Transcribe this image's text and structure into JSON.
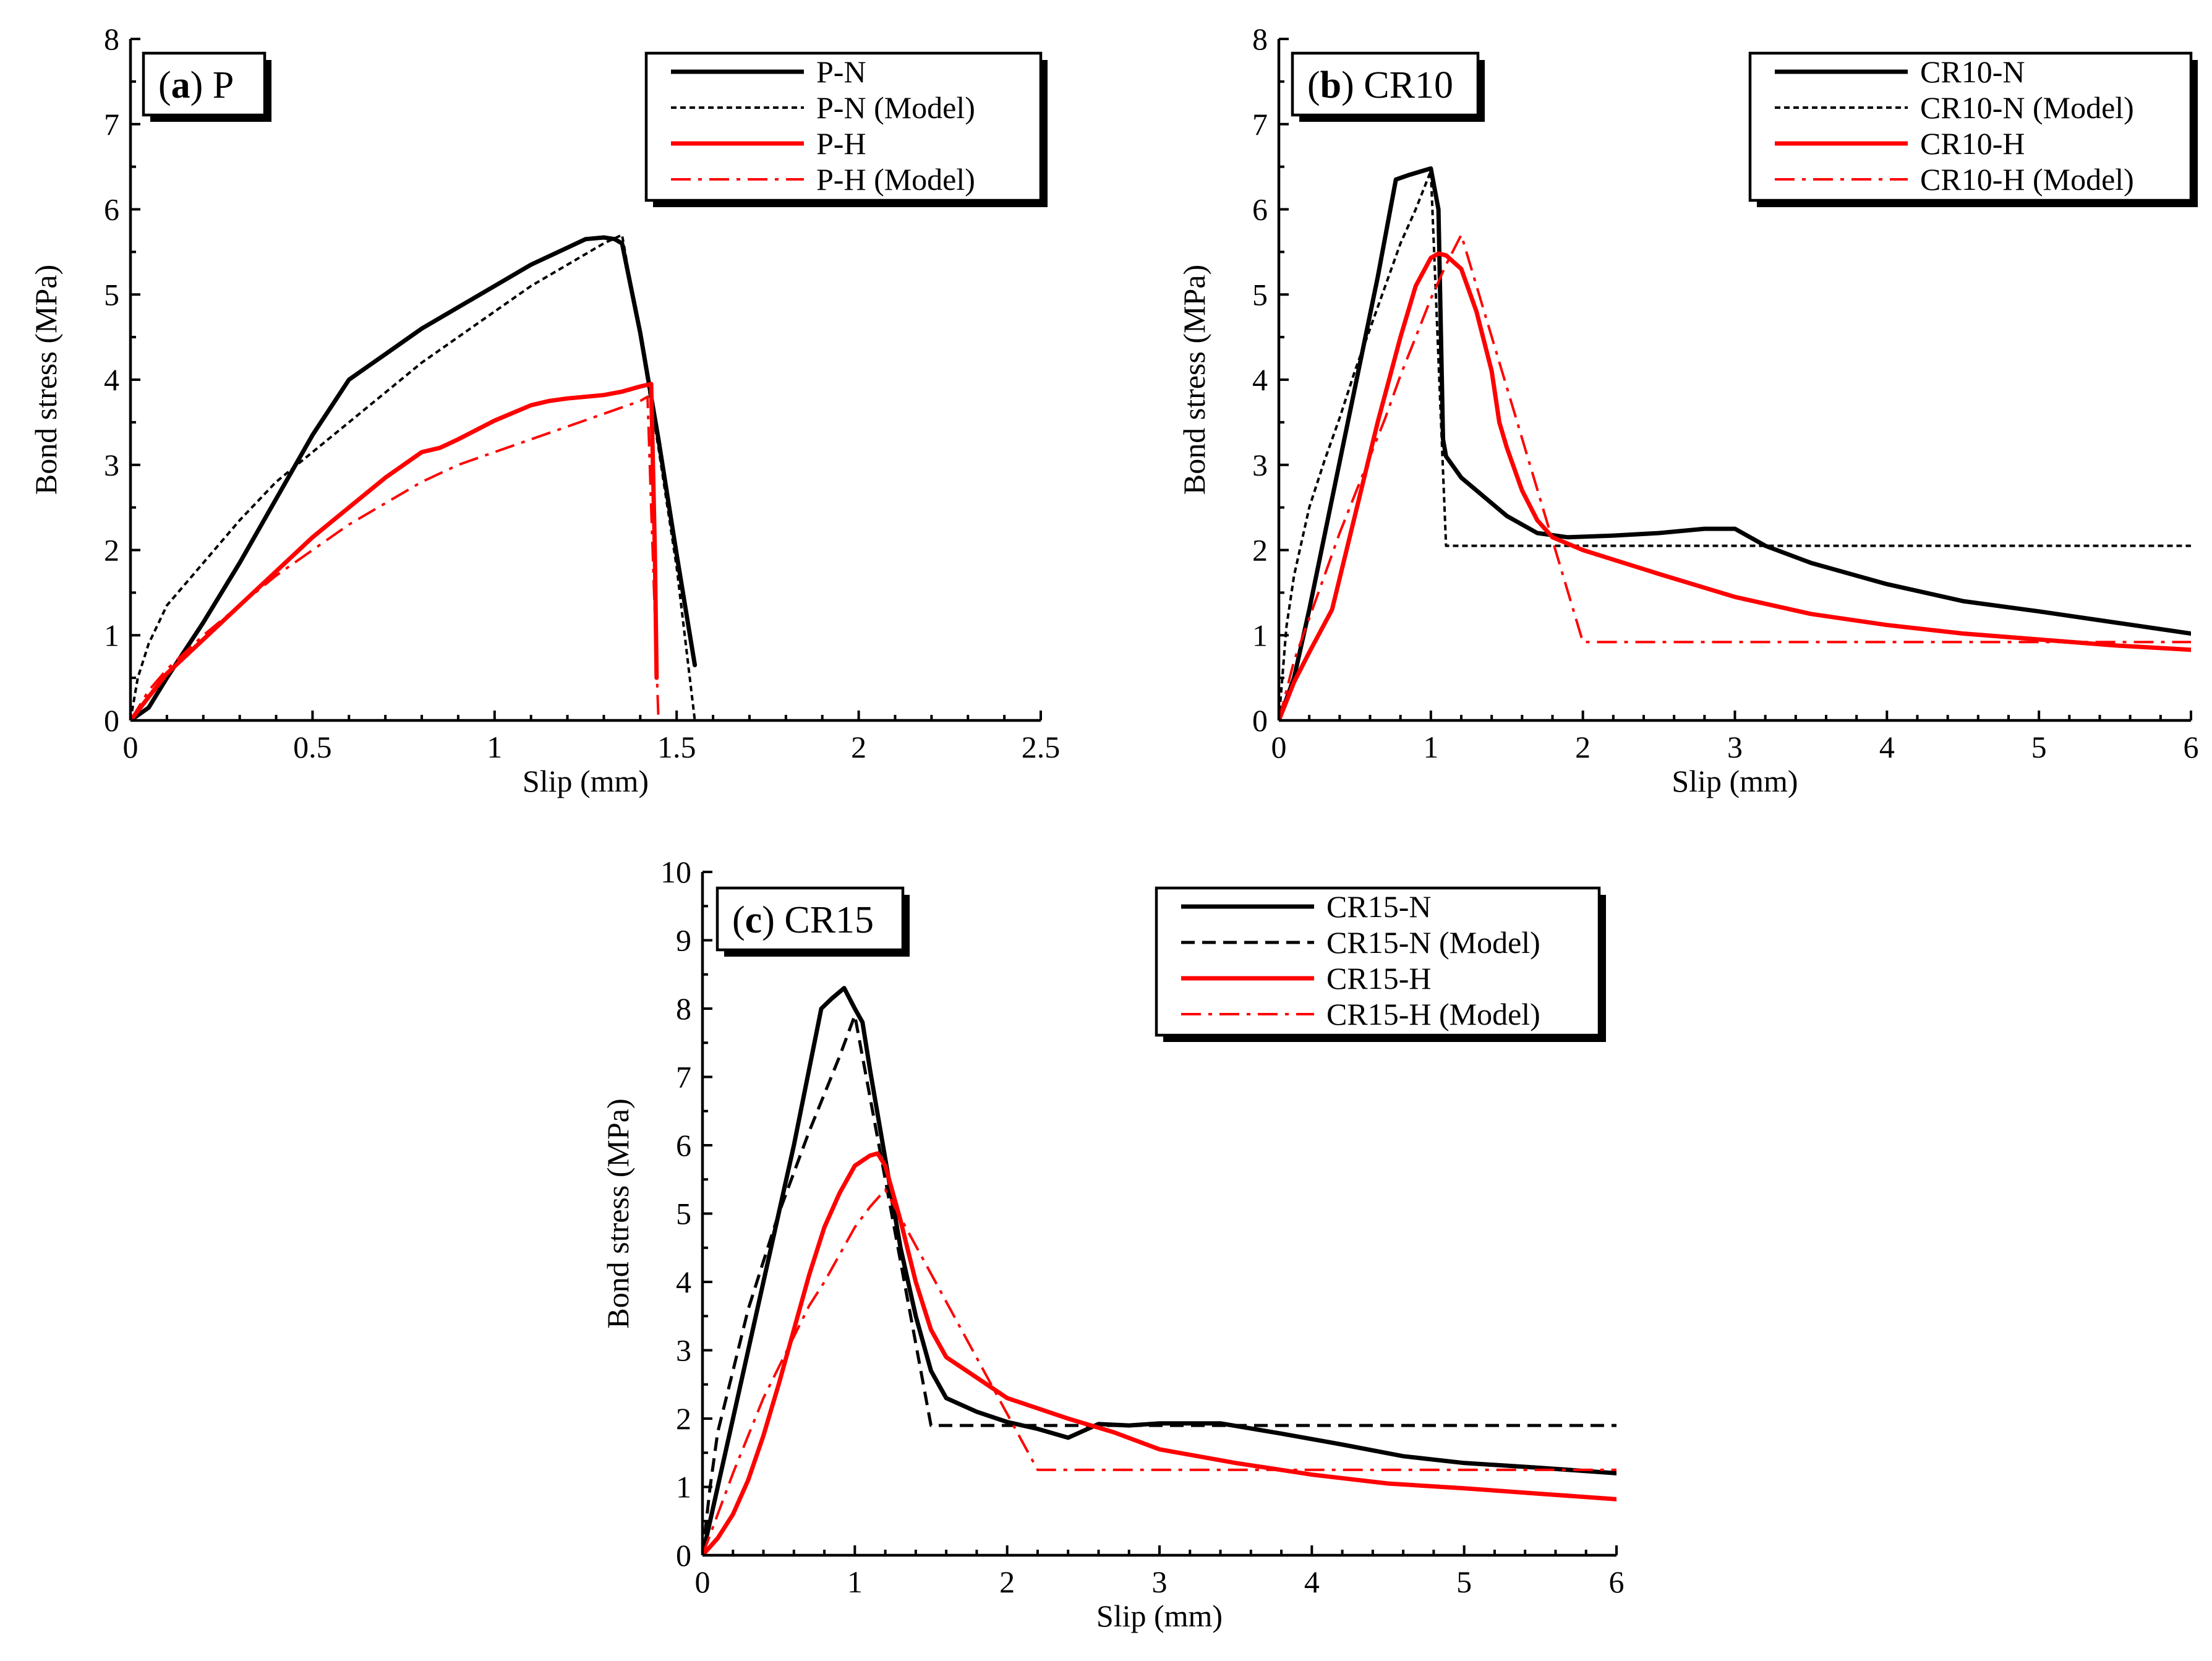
{
  "chart_data": [
    {
      "id": "a",
      "type": "line",
      "panel_letter": "a",
      "panel_name": "P",
      "xlabel": "Slip (mm)",
      "ylabel": "Bond stress (MPa)",
      "xlim": [
        0,
        2.5
      ],
      "ylim": [
        0,
        8
      ],
      "xticks": [
        0,
        0.5,
        1,
        1.5,
        2,
        2.5
      ],
      "xtick_labels": [
        "0",
        "0.5",
        "1",
        "1.5",
        "2",
        "2.5"
      ],
      "yticks": [
        0,
        1,
        2,
        3,
        4,
        5,
        6,
        7,
        8
      ],
      "ytick_labels": [
        "0",
        "1",
        "2",
        "3",
        "4",
        "5",
        "6",
        "7",
        "8"
      ],
      "legend_position": "top-right",
      "series": [
        {
          "name": "P-N",
          "color": "#000000",
          "style": "solid",
          "x": [
            0,
            0.05,
            0.1,
            0.2,
            0.3,
            0.4,
            0.5,
            0.6,
            0.65,
            0.7,
            0.8,
            0.9,
            1.0,
            1.1,
            1.2,
            1.25,
            1.3,
            1.33,
            1.35,
            1.4,
            1.45,
            1.5,
            1.55
          ],
          "y": [
            0,
            0.15,
            0.5,
            1.15,
            1.85,
            2.6,
            3.35,
            4.0,
            4.15,
            4.3,
            4.6,
            4.85,
            5.1,
            5.35,
            5.55,
            5.65,
            5.67,
            5.65,
            5.6,
            4.55,
            3.3,
            1.95,
            0.65
          ]
        },
        {
          "name": "P-N (Model)",
          "color": "#000000",
          "style": "dotted",
          "x": [
            0,
            0.02,
            0.05,
            0.1,
            0.2,
            0.3,
            0.4,
            0.5,
            0.6,
            0.7,
            0.8,
            0.9,
            1.0,
            1.1,
            1.2,
            1.3,
            1.35,
            1.4,
            1.45,
            1.5,
            1.55
          ],
          "y": [
            0,
            0.5,
            0.9,
            1.35,
            1.85,
            2.35,
            2.8,
            3.15,
            3.5,
            3.85,
            4.2,
            4.5,
            4.8,
            5.1,
            5.35,
            5.6,
            5.7,
            4.5,
            3.2,
            1.8,
            0
          ]
        },
        {
          "name": "P-H",
          "color": "#ff0000",
          "style": "solid",
          "x": [
            0,
            0.1,
            0.2,
            0.3,
            0.4,
            0.5,
            0.6,
            0.7,
            0.8,
            0.85,
            0.9,
            1.0,
            1.1,
            1.15,
            1.2,
            1.3,
            1.35,
            1.4,
            1.43,
            1.44,
            1.445
          ],
          "y": [
            0,
            0.55,
            0.95,
            1.35,
            1.75,
            2.15,
            2.5,
            2.85,
            3.15,
            3.2,
            3.3,
            3.52,
            3.7,
            3.75,
            3.78,
            3.82,
            3.86,
            3.92,
            3.95,
            2.0,
            0.5
          ]
        },
        {
          "name": "P-H (Model)",
          "color": "#ff0000",
          "style": "dashdot",
          "x": [
            0,
            0.05,
            0.1,
            0.2,
            0.3,
            0.4,
            0.5,
            0.6,
            0.7,
            0.8,
            0.9,
            1.0,
            1.1,
            1.2,
            1.3,
            1.4,
            1.42,
            1.43,
            1.45
          ],
          "y": [
            0,
            0.35,
            0.6,
            1.0,
            1.35,
            1.7,
            2.0,
            2.3,
            2.55,
            2.8,
            3.0,
            3.15,
            3.3,
            3.45,
            3.6,
            3.75,
            3.8,
            2.5,
            0
          ]
        }
      ]
    },
    {
      "id": "b",
      "type": "line",
      "panel_letter": "b",
      "panel_name": "CR10",
      "xlabel": "Slip (mm)",
      "ylabel": "Bond stress (MPa)",
      "xlim": [
        0,
        6
      ],
      "ylim": [
        0,
        8
      ],
      "xticks": [
        0,
        1,
        2,
        3,
        4,
        5,
        6
      ],
      "xtick_labels": [
        "0",
        "1",
        "2",
        "3",
        "4",
        "5",
        "6"
      ],
      "yticks": [
        0,
        1,
        2,
        3,
        4,
        5,
        6,
        7,
        8
      ],
      "ytick_labels": [
        "0",
        "1",
        "2",
        "3",
        "4",
        "5",
        "6",
        "7",
        "8"
      ],
      "legend_position": "top-right",
      "series": [
        {
          "name": "CR10-N",
          "color": "#000000",
          "style": "solid",
          "x": [
            0,
            0.1,
            0.2,
            0.35,
            0.5,
            0.65,
            0.77,
            0.85,
            1.0,
            1.05,
            1.08,
            1.1,
            1.2,
            1.3,
            1.5,
            1.7,
            1.9,
            2.2,
            2.5,
            2.8,
            3.0,
            3.2,
            3.5,
            4.0,
            4.5,
            5.0,
            5.5,
            6.0
          ],
          "y": [
            0,
            0.5,
            1.3,
            2.6,
            3.9,
            5.2,
            6.35,
            6.4,
            6.48,
            6.0,
            3.3,
            3.1,
            2.85,
            2.7,
            2.4,
            2.2,
            2.15,
            2.17,
            2.2,
            2.25,
            2.25,
            2.05,
            1.85,
            1.6,
            1.4,
            1.28,
            1.15,
            1.02
          ]
        },
        {
          "name": "CR10-N (Model)",
          "color": "#000000",
          "style": "dotted",
          "x": [
            0,
            0.05,
            0.1,
            0.2,
            0.3,
            0.4,
            0.5,
            0.6,
            0.7,
            0.8,
            0.9,
            1.0,
            1.1,
            6.0
          ],
          "y": [
            0,
            1.1,
            1.7,
            2.5,
            3.05,
            3.55,
            4.1,
            4.6,
            5.1,
            5.6,
            6.0,
            6.45,
            2.05,
            2.05
          ]
        },
        {
          "name": "CR10-H",
          "color": "#ff0000",
          "style": "solid",
          "x": [
            0,
            0.1,
            0.2,
            0.35,
            0.5,
            0.65,
            0.8,
            0.9,
            1.0,
            1.05,
            1.1,
            1.2,
            1.3,
            1.4,
            1.45,
            1.5,
            1.6,
            1.7,
            1.8,
            2.0,
            2.5,
            3.0,
            3.5,
            4.0,
            4.5,
            5.0,
            5.5,
            6.0
          ],
          "y": [
            0,
            0.45,
            0.8,
            1.3,
            2.4,
            3.5,
            4.5,
            5.1,
            5.43,
            5.48,
            5.46,
            5.3,
            4.8,
            4.1,
            3.5,
            3.2,
            2.7,
            2.35,
            2.15,
            2.0,
            1.72,
            1.45,
            1.25,
            1.12,
            1.02,
            0.95,
            0.88,
            0.83
          ]
        },
        {
          "name": "CR10-H (Model)",
          "color": "#ff0000",
          "style": "dashdot",
          "x": [
            0,
            0.1,
            0.2,
            0.3,
            0.4,
            0.5,
            0.6,
            0.7,
            0.8,
            0.9,
            1.0,
            1.1,
            1.2,
            2.0,
            6.0
          ],
          "y": [
            0,
            0.7,
            1.2,
            1.7,
            2.2,
            2.65,
            3.1,
            3.55,
            4.05,
            4.5,
            4.95,
            5.35,
            5.7,
            0.92,
            0.92
          ]
        }
      ]
    },
    {
      "id": "c",
      "type": "line",
      "panel_letter": "c",
      "panel_name": "CR15",
      "xlabel": "Slip (mm)",
      "ylabel": "Bond stress (MPa)",
      "xlim": [
        0,
        6
      ],
      "ylim": [
        0,
        10
      ],
      "xticks": [
        0,
        1,
        2,
        3,
        4,
        5,
        6
      ],
      "xtick_labels": [
        "0",
        "1",
        "2",
        "3",
        "4",
        "5",
        "6"
      ],
      "yticks": [
        0,
        1,
        2,
        3,
        4,
        5,
        6,
        7,
        8,
        9,
        10
      ],
      "ytick_labels": [
        "0",
        "1",
        "2",
        "3",
        "4",
        "5",
        "6",
        "7",
        "8",
        "9",
        "10"
      ],
      "legend_position": "top-right",
      "series": [
        {
          "name": "CR15-N",
          "color": "#000000",
          "style": "solid",
          "x": [
            0,
            0.1,
            0.2,
            0.4,
            0.6,
            0.78,
            0.85,
            0.93,
            1.0,
            1.05,
            1.1,
            1.2,
            1.3,
            1.4,
            1.5,
            1.6,
            1.8,
            2.0,
            2.2,
            2.4,
            2.6,
            2.8,
            3.0,
            3.4,
            3.8,
            4.2,
            4.6,
            5.0,
            5.5,
            6.0
          ],
          "y": [
            0,
            1.0,
            2.0,
            4.0,
            6.0,
            8.0,
            8.15,
            8.3,
            8.0,
            7.8,
            7.1,
            5.8,
            4.5,
            3.5,
            2.7,
            2.3,
            2.1,
            1.95,
            1.85,
            1.72,
            1.92,
            1.9,
            1.93,
            1.93,
            1.78,
            1.62,
            1.45,
            1.35,
            1.28,
            1.2
          ]
        },
        {
          "name": "CR15-N (Model)",
          "color": "#000000",
          "style": "dashed",
          "x": [
            0,
            0.05,
            0.1,
            0.2,
            0.3,
            0.4,
            0.5,
            0.6,
            0.7,
            0.8,
            0.9,
            1.0,
            1.5,
            6.0
          ],
          "y": [
            0,
            1.0,
            1.8,
            2.7,
            3.6,
            4.3,
            5.0,
            5.6,
            6.2,
            6.75,
            7.3,
            7.9,
            1.9,
            1.9
          ]
        },
        {
          "name": "CR15-H",
          "color": "#ff0000",
          "style": "solid",
          "x": [
            0,
            0.1,
            0.2,
            0.3,
            0.4,
            0.5,
            0.6,
            0.7,
            0.8,
            0.9,
            1.0,
            1.1,
            1.15,
            1.2,
            1.3,
            1.4,
            1.5,
            1.6,
            1.8,
            2.0,
            2.4,
            2.7,
            3.0,
            3.5,
            4.0,
            4.5,
            5.0,
            5.5,
            6.0
          ],
          "y": [
            0,
            0.25,
            0.6,
            1.1,
            1.75,
            2.5,
            3.3,
            4.1,
            4.8,
            5.3,
            5.7,
            5.85,
            5.88,
            5.7,
            4.9,
            4.0,
            3.3,
            2.9,
            2.6,
            2.3,
            2.0,
            1.8,
            1.55,
            1.35,
            1.18,
            1.05,
            0.98,
            0.9,
            0.82
          ]
        },
        {
          "name": "CR15-H (Model)",
          "color": "#ff0000",
          "style": "dashdot",
          "x": [
            0,
            0.1,
            0.2,
            0.3,
            0.4,
            0.5,
            0.6,
            0.7,
            0.8,
            0.9,
            1.0,
            1.1,
            1.2,
            2.2,
            6.0
          ],
          "y": [
            0,
            0.6,
            1.2,
            1.75,
            2.3,
            2.75,
            3.2,
            3.65,
            4.0,
            4.4,
            4.8,
            5.1,
            5.35,
            1.25,
            1.25
          ]
        }
      ]
    }
  ]
}
